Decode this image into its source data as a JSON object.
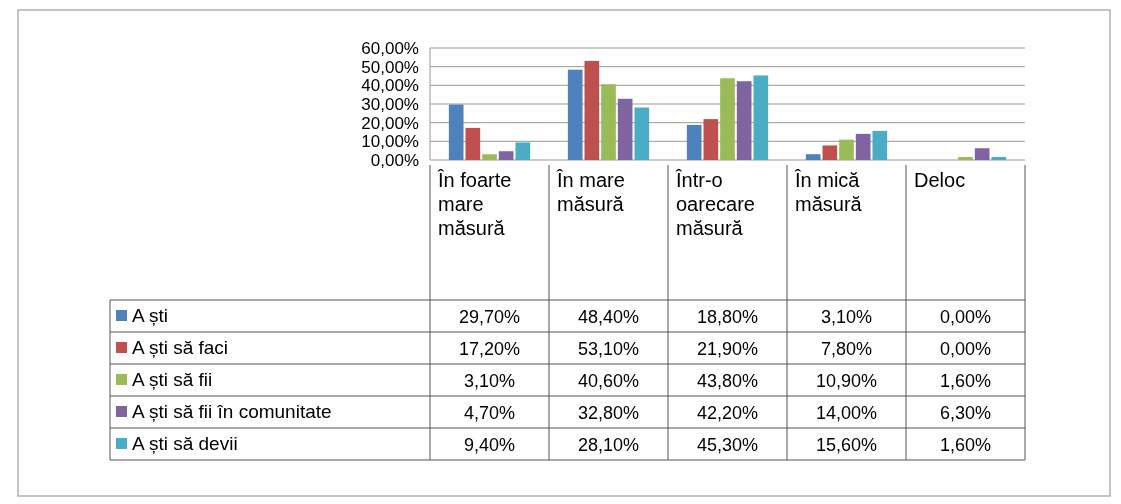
{
  "chart_data": {
    "type": "bar",
    "categories": [
      "În foarte mare măsură",
      "În mare măsură",
      "Într-o oarecare măsură",
      "În mică măsură",
      "Deloc"
    ],
    "series": [
      {
        "name": "A ști",
        "color": "#4f81bd",
        "values": [
          29.7,
          48.4,
          18.8,
          3.1,
          0
        ],
        "value_labels": [
          "29,70%",
          "48,40%",
          "18,80%",
          "3,10%",
          "0,00%"
        ]
      },
      {
        "name": "A ști să faci",
        "color": "#c0504d",
        "values": [
          17.2,
          53.1,
          21.9,
          7.8,
          0
        ],
        "value_labels": [
          "17,20%",
          "53,10%",
          "21,90%",
          "7,80%",
          "0,00%"
        ]
      },
      {
        "name": "A ști să fii",
        "color": "#9bbb59",
        "values": [
          3.1,
          40.6,
          43.8,
          10.9,
          1.6
        ],
        "value_labels": [
          "3,10%",
          "40,60%",
          "43,80%",
          "10,90%",
          "1,60%"
        ]
      },
      {
        "name": "A ști să fii în comunitate",
        "color": "#8064a2",
        "values": [
          4.7,
          32.8,
          42.2,
          14,
          6.3
        ],
        "value_labels": [
          "4,70%",
          "32,80%",
          "42,20%",
          "14,00%",
          "6,30%"
        ]
      },
      {
        "name": "A ști să devii",
        "color": "#4bacc6",
        "values": [
          9.4,
          28.1,
          45.3,
          15.6,
          1.6
        ],
        "value_labels": [
          "9,40%",
          "28,10%",
          "45,30%",
          "15,60%",
          "1,60%"
        ]
      }
    ],
    "ylim": [
      0,
      60
    ],
    "yticks": [
      {
        "value": 0,
        "label": "0,00%"
      },
      {
        "value": 10,
        "label": "10,00%"
      },
      {
        "value": 20,
        "label": "20,00%"
      },
      {
        "value": 30,
        "label": "30,00%"
      },
      {
        "value": 40,
        "label": "40,00%"
      },
      {
        "value": 50,
        "label": "50,00%"
      },
      {
        "value": 60,
        "label": "60,00%"
      }
    ],
    "grid": "y",
    "legend": "bottom"
  }
}
